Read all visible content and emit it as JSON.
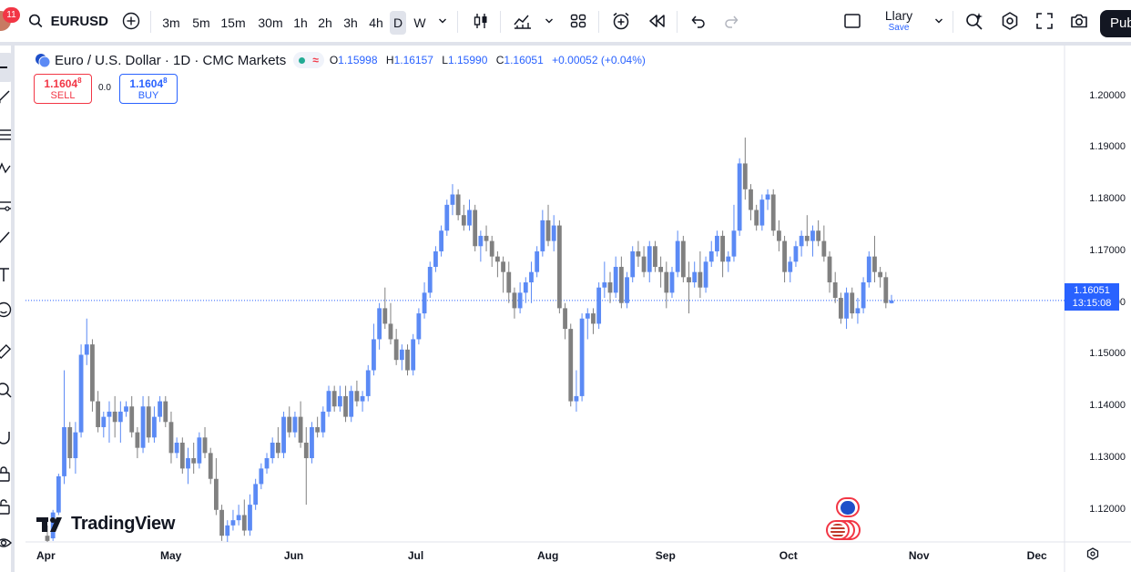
{
  "toolbar": {
    "notification_count": "11",
    "symbol": "EURUSD",
    "timeframes": [
      "3m",
      "5m",
      "15m",
      "30m",
      "1h",
      "2h",
      "3h",
      "4h",
      "D",
      "W"
    ],
    "active_timeframe": "D",
    "layout_name": "Llary",
    "layout_status": "Save",
    "publish_label": "Pub"
  },
  "legend": {
    "title": "Euro / U.S. Dollar · 1D · CMC Markets",
    "open_label": "O",
    "open": "1.15998",
    "high_label": "H",
    "high": "1.16157",
    "low_label": "L",
    "low": "1.15990",
    "close_label": "C",
    "close": "1.16051",
    "change": "+0.00052 (+0.04%)",
    "wave_glyph": "≈"
  },
  "trade": {
    "sell_price_main": "1.1604",
    "sell_price_sup": "8",
    "sell_label": "SELL",
    "spread": "0.0",
    "buy_price_main": "1.1604",
    "buy_price_sup": "8",
    "buy_label": "BUY"
  },
  "price_tag": {
    "price": "1.16051",
    "countdown": "13:15:08"
  },
  "brand": {
    "logo_text": "TradingView"
  },
  "colors": {
    "up": "#5b8af5",
    "down": "#808080",
    "accent": "#2962ff",
    "sell": "#f23645"
  },
  "chart_data": {
    "type": "candlestick",
    "title": "Euro / U.S. Dollar · 1D · CMC Markets",
    "symbol": "EURUSD",
    "interval": "1D",
    "ylim": [
      1.1138,
      1.2098
    ],
    "y_ticks": [
      "1.20000",
      "1.19000",
      "1.18000",
      "1.17000",
      "1.16000",
      "1.15000",
      "1.14000",
      "1.13000",
      "1.12000"
    ],
    "y_tick_values": [
      1.2,
      1.19,
      1.18,
      1.17,
      1.16,
      1.15,
      1.14,
      1.13,
      1.12
    ],
    "x_ticks": [
      "Apr",
      "May",
      "Jun",
      "Jul",
      "Aug",
      "Sep",
      "Oct",
      "Nov",
      "Dec"
    ],
    "x_tick_index": [
      0,
      22,
      44,
      66,
      89,
      110,
      132,
      155,
      176
    ],
    "last_price": 1.16051,
    "candles": [
      [
        1.115,
        1.117,
        1.113,
        1.114
      ],
      [
        1.1145,
        1.12,
        1.114,
        1.1195
      ],
      [
        1.1195,
        1.127,
        1.119,
        1.1265
      ],
      [
        1.1265,
        1.147,
        1.125,
        1.136
      ],
      [
        1.136,
        1.137,
        1.128,
        1.13
      ],
      [
        1.13,
        1.137,
        1.127,
        1.135
      ],
      [
        1.135,
        1.152,
        1.134,
        1.15
      ],
      [
        1.15,
        1.157,
        1.148,
        1.152
      ],
      [
        1.152,
        1.153,
        1.139,
        1.141
      ],
      [
        1.141,
        1.143,
        1.135,
        1.136
      ],
      [
        1.136,
        1.139,
        1.134,
        1.138
      ],
      [
        1.138,
        1.141,
        1.133,
        1.139
      ],
      [
        1.139,
        1.142,
        1.134,
        1.137
      ],
      [
        1.137,
        1.141,
        1.133,
        1.139
      ],
      [
        1.139,
        1.141,
        1.138,
        1.14
      ],
      [
        1.14,
        1.142,
        1.134,
        1.135
      ],
      [
        1.135,
        1.136,
        1.13,
        1.132
      ],
      [
        1.132,
        1.142,
        1.131,
        1.14
      ],
      [
        1.14,
        1.142,
        1.133,
        1.134
      ],
      [
        1.134,
        1.14,
        1.133,
        1.138
      ],
      [
        1.138,
        1.142,
        1.137,
        1.141
      ],
      [
        1.141,
        1.142,
        1.136,
        1.137
      ],
      [
        1.137,
        1.139,
        1.129,
        1.131
      ],
      [
        1.131,
        1.134,
        1.13,
        1.133
      ],
      [
        1.133,
        1.134,
        1.127,
        1.128
      ],
      [
        1.128,
        1.132,
        1.125,
        1.13
      ],
      [
        1.13,
        1.133,
        1.127,
        1.129
      ],
      [
        1.129,
        1.135,
        1.128,
        1.134
      ],
      [
        1.134,
        1.136,
        1.13,
        1.131
      ],
      [
        1.131,
        1.132,
        1.125,
        1.126
      ],
      [
        1.126,
        1.13,
        1.119,
        1.12
      ],
      [
        1.12,
        1.121,
        1.114,
        1.115
      ],
      [
        1.115,
        1.118,
        1.113,
        1.117
      ],
      [
        1.117,
        1.12,
        1.116,
        1.118
      ],
      [
        1.118,
        1.121,
        1.117,
        1.119
      ],
      [
        1.119,
        1.122,
        1.115,
        1.116
      ],
      [
        1.116,
        1.123,
        1.115,
        1.121
      ],
      [
        1.121,
        1.126,
        1.12,
        1.125
      ],
      [
        1.125,
        1.129,
        1.124,
        1.128
      ],
      [
        1.128,
        1.131,
        1.127,
        1.13
      ],
      [
        1.13,
        1.134,
        1.129,
        1.133
      ],
      [
        1.133,
        1.136,
        1.13,
        1.131
      ],
      [
        1.131,
        1.139,
        1.13,
        1.138
      ],
      [
        1.138,
        1.14,
        1.134,
        1.135
      ],
      [
        1.135,
        1.139,
        1.134,
        1.138
      ],
      [
        1.138,
        1.141,
        1.132,
        1.133
      ],
      [
        1.133,
        1.136,
        1.121,
        1.13
      ],
      [
        1.13,
        1.137,
        1.129,
        1.136
      ],
      [
        1.136,
        1.138,
        1.134,
        1.135
      ],
      [
        1.135,
        1.14,
        1.134,
        1.139
      ],
      [
        1.139,
        1.144,
        1.138,
        1.143
      ],
      [
        1.143,
        1.144,
        1.139,
        1.14
      ],
      [
        1.14,
        1.144,
        1.139,
        1.142
      ],
      [
        1.142,
        1.144,
        1.137,
        1.138
      ],
      [
        1.138,
        1.144,
        1.137,
        1.143
      ],
      [
        1.143,
        1.145,
        1.14,
        1.141
      ],
      [
        1.141,
        1.143,
        1.139,
        1.142
      ],
      [
        1.142,
        1.148,
        1.141,
        1.147
      ],
      [
        1.147,
        1.156,
        1.146,
        1.153
      ],
      [
        1.153,
        1.16,
        1.151,
        1.159
      ],
      [
        1.159,
        1.163,
        1.155,
        1.156
      ],
      [
        1.156,
        1.16,
        1.152,
        1.153
      ],
      [
        1.153,
        1.155,
        1.148,
        1.149
      ],
      [
        1.149,
        1.152,
        1.147,
        1.151
      ],
      [
        1.151,
        1.152,
        1.146,
        1.147
      ],
      [
        1.147,
        1.154,
        1.146,
        1.153
      ],
      [
        1.153,
        1.159,
        1.152,
        1.158
      ],
      [
        1.158,
        1.164,
        1.157,
        1.162
      ],
      [
        1.162,
        1.168,
        1.161,
        1.167
      ],
      [
        1.167,
        1.171,
        1.166,
        1.17
      ],
      [
        1.17,
        1.175,
        1.169,
        1.174
      ],
      [
        1.174,
        1.18,
        1.173,
        1.179
      ],
      [
        1.179,
        1.183,
        1.177,
        1.181
      ],
      [
        1.181,
        1.182,
        1.176,
        1.177
      ],
      [
        1.177,
        1.179,
        1.174,
        1.175
      ],
      [
        1.175,
        1.18,
        1.174,
        1.178
      ],
      [
        1.178,
        1.179,
        1.17,
        1.171
      ],
      [
        1.171,
        1.174,
        1.168,
        1.173
      ],
      [
        1.173,
        1.175,
        1.17,
        1.172
      ],
      [
        1.172,
        1.173,
        1.167,
        1.169
      ],
      [
        1.169,
        1.17,
        1.165,
        1.168
      ],
      [
        1.168,
        1.169,
        1.162,
        1.166
      ],
      [
        1.166,
        1.168,
        1.16,
        1.162
      ],
      [
        1.162,
        1.163,
        1.157,
        1.159
      ],
      [
        1.159,
        1.164,
        1.158,
        1.162
      ],
      [
        1.162,
        1.165,
        1.16,
        1.164
      ],
      [
        1.164,
        1.168,
        1.16,
        1.166
      ],
      [
        1.166,
        1.171,
        1.165,
        1.17
      ],
      [
        1.17,
        1.178,
        1.169,
        1.176
      ],
      [
        1.176,
        1.179,
        1.171,
        1.172
      ],
      [
        1.172,
        1.177,
        1.17,
        1.175
      ],
      [
        1.175,
        1.176,
        1.158,
        1.159
      ],
      [
        1.159,
        1.16,
        1.153,
        1.155
      ],
      [
        1.155,
        1.156,
        1.14,
        1.141
      ],
      [
        1.141,
        1.147,
        1.139,
        1.142
      ],
      [
        1.142,
        1.158,
        1.141,
        1.157
      ],
      [
        1.157,
        1.159,
        1.153,
        1.158
      ],
      [
        1.158,
        1.159,
        1.154,
        1.156
      ],
      [
        1.156,
        1.164,
        1.155,
        1.163
      ],
      [
        1.163,
        1.168,
        1.161,
        1.164
      ],
      [
        1.164,
        1.166,
        1.16,
        1.162
      ],
      [
        1.162,
        1.169,
        1.161,
        1.167
      ],
      [
        1.167,
        1.169,
        1.159,
        1.16
      ],
      [
        1.16,
        1.166,
        1.159,
        1.165
      ],
      [
        1.165,
        1.171,
        1.164,
        1.17
      ],
      [
        1.17,
        1.172,
        1.167,
        1.169
      ],
      [
        1.169,
        1.171,
        1.165,
        1.166
      ],
      [
        1.166,
        1.172,
        1.164,
        1.171
      ],
      [
        1.171,
        1.172,
        1.166,
        1.167
      ],
      [
        1.167,
        1.169,
        1.163,
        1.166
      ],
      [
        1.166,
        1.168,
        1.159,
        1.162
      ],
      [
        1.162,
        1.167,
        1.161,
        1.166
      ],
      [
        1.166,
        1.174,
        1.165,
        1.172
      ],
      [
        1.172,
        1.173,
        1.164,
        1.165
      ],
      [
        1.165,
        1.168,
        1.158,
        1.164
      ],
      [
        1.164,
        1.168,
        1.163,
        1.166
      ],
      [
        1.166,
        1.17,
        1.161,
        1.163
      ],
      [
        1.163,
        1.169,
        1.162,
        1.168
      ],
      [
        1.168,
        1.172,
        1.167,
        1.17
      ],
      [
        1.17,
        1.174,
        1.169,
        1.173
      ],
      [
        1.173,
        1.174,
        1.165,
        1.168
      ],
      [
        1.168,
        1.17,
        1.166,
        1.169
      ],
      [
        1.169,
        1.179,
        1.168,
        1.174
      ],
      [
        1.174,
        1.188,
        1.173,
        1.187
      ],
      [
        1.187,
        1.192,
        1.18,
        1.182
      ],
      [
        1.182,
        1.183,
        1.176,
        1.178
      ],
      [
        1.178,
        1.179,
        1.174,
        1.175
      ],
      [
        1.175,
        1.181,
        1.174,
        1.18
      ],
      [
        1.18,
        1.182,
        1.178,
        1.181
      ],
      [
        1.181,
        1.182,
        1.173,
        1.174
      ],
      [
        1.174,
        1.176,
        1.17,
        1.172
      ],
      [
        1.172,
        1.173,
        1.164,
        1.166
      ],
      [
        1.166,
        1.169,
        1.164,
        1.168
      ],
      [
        1.168,
        1.172,
        1.167,
        1.171
      ],
      [
        1.171,
        1.174,
        1.169,
        1.173
      ],
      [
        1.173,
        1.177,
        1.171,
        1.172
      ],
      [
        1.172,
        1.175,
        1.169,
        1.174
      ],
      [
        1.174,
        1.176,
        1.171,
        1.172
      ],
      [
        1.172,
        1.175,
        1.168,
        1.169
      ],
      [
        1.169,
        1.17,
        1.162,
        1.164
      ],
      [
        1.164,
        1.166,
        1.16,
        1.161
      ],
      [
        1.161,
        1.162,
        1.156,
        1.157
      ],
      [
        1.157,
        1.163,
        1.155,
        1.162
      ],
      [
        1.162,
        1.163,
        1.157,
        1.158
      ],
      [
        1.158,
        1.161,
        1.156,
        1.159
      ],
      [
        1.159,
        1.165,
        1.158,
        1.164
      ],
      [
        1.164,
        1.17,
        1.163,
        1.169
      ],
      [
        1.169,
        1.173,
        1.164,
        1.166
      ],
      [
        1.166,
        1.167,
        1.163,
        1.165
      ],
      [
        1.165,
        1.166,
        1.159,
        1.16
      ],
      [
        1.15998,
        1.16157,
        1.1599,
        1.16051
      ]
    ]
  }
}
